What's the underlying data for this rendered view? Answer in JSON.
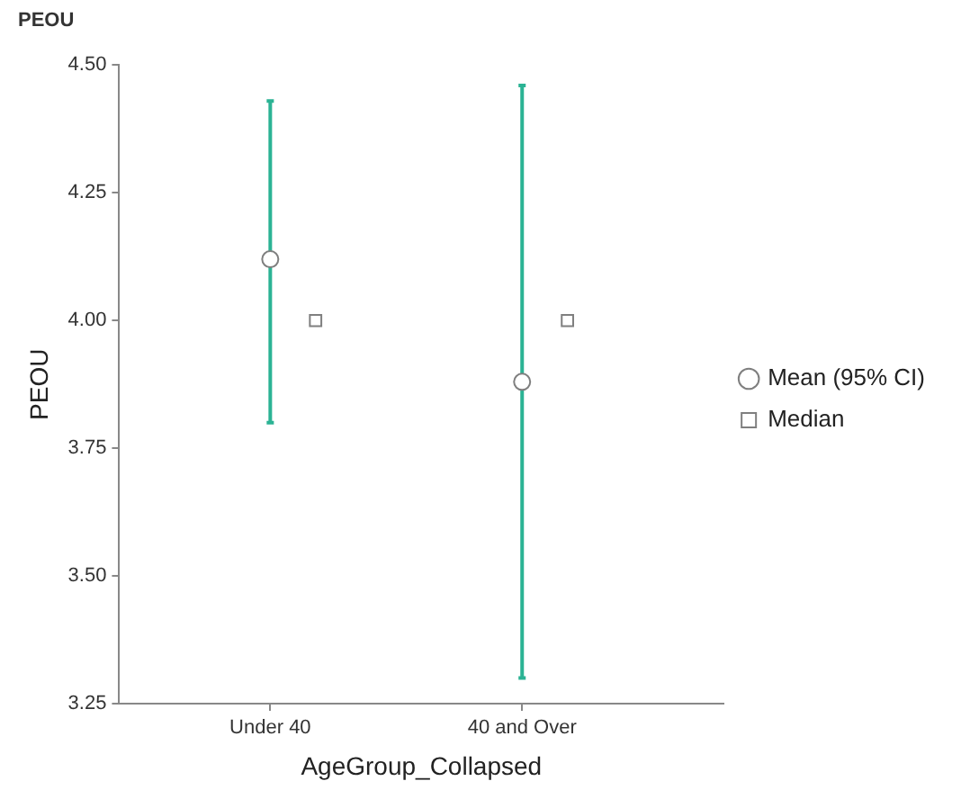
{
  "chart_data": {
    "type": "scatter",
    "title": "PEOU",
    "xlabel": "AgeGroup_Collapsed",
    "ylabel": "PEOU",
    "categories": [
      "Under 40",
      "40 and Over"
    ],
    "series": [
      {
        "name": "Mean (95% CI)",
        "color": "#7f7f7f",
        "marker": "circle",
        "values": [
          4.12,
          3.88
        ],
        "errors": [
          [
            3.8,
            4.43
          ],
          [
            3.3,
            4.46
          ]
        ]
      },
      {
        "name": "Median",
        "color": "#7f7f7f",
        "marker": "square",
        "values": [
          4.0,
          4.0
        ]
      }
    ],
    "ylim": [
      3.25,
      4.5
    ],
    "yticks": [
      {
        "value": 3.25,
        "label": "3.25"
      },
      {
        "value": 3.5,
        "label": "3.50"
      },
      {
        "value": 3.75,
        "label": "3.75"
      },
      {
        "value": 4.0,
        "label": "4.00"
      },
      {
        "value": 4.25,
        "label": "4.25"
      },
      {
        "value": 4.5,
        "label": "4.50"
      }
    ],
    "grid": false,
    "legend": "right"
  }
}
